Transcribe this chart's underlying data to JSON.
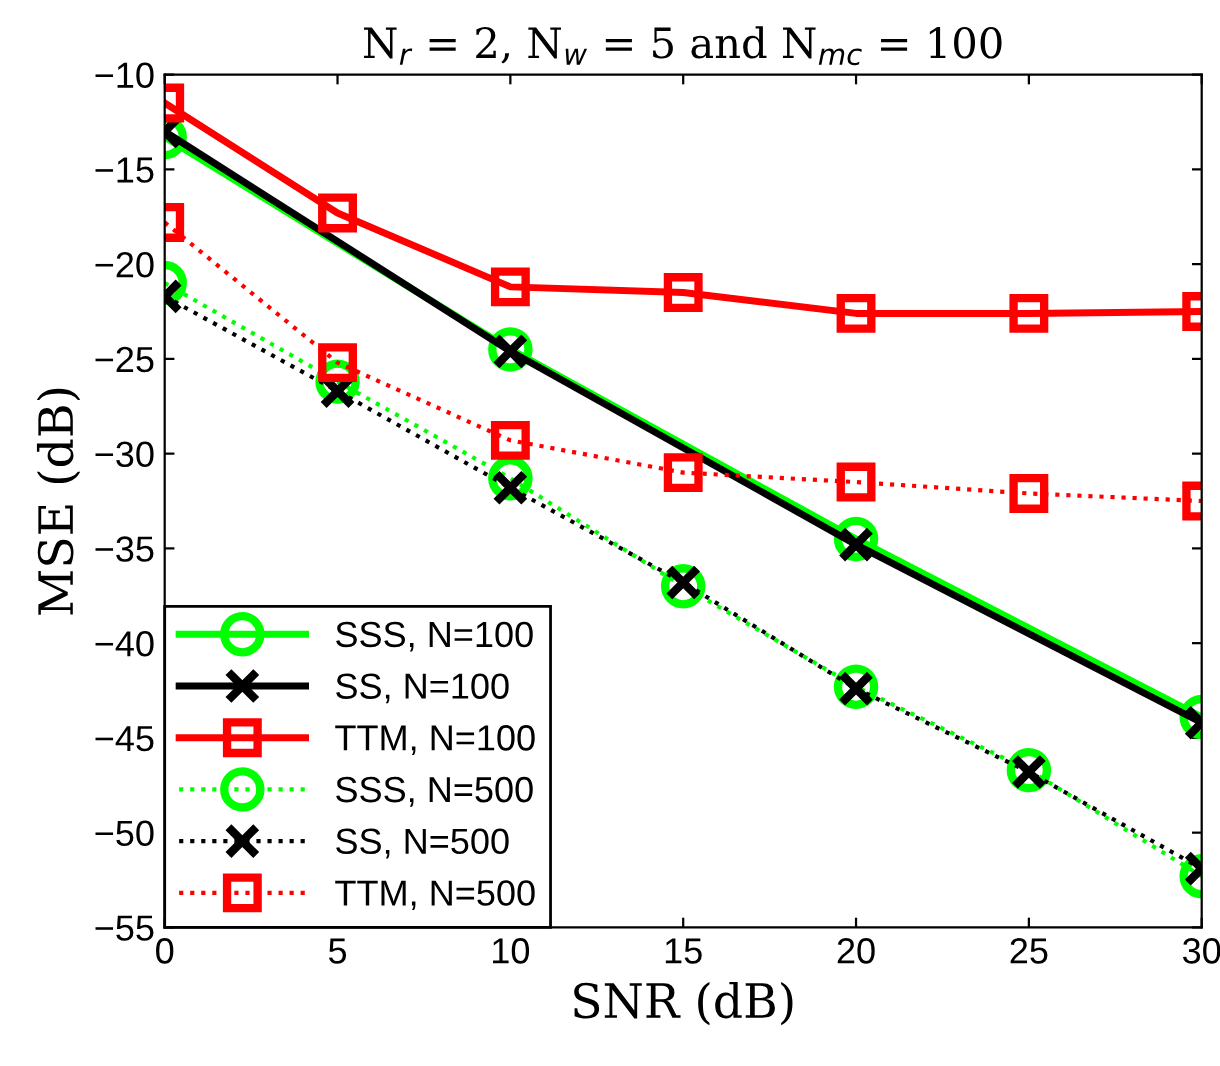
{
  "chart_data": {
    "type": "line",
    "title": "N$_{r}$ = 2, N$_{w}$ = 5 and N$_{mc}$ = 100",
    "xlabel": "SNR (dB)",
    "ylabel": "MSE (dB)",
    "x": [
      0,
      5,
      10,
      15,
      20,
      25,
      30
    ],
    "series": [
      {
        "name": "SSS, N=100",
        "color": "#00ff00",
        "marker": "circle",
        "line_style": "solid",
        "x": [
          0,
          10,
          20,
          30
        ],
        "values": [
          -13.3,
          -24.5,
          -34.5,
          -43.9
        ]
      },
      {
        "name": "SS, N=100",
        "color": "#000000",
        "marker": "cross",
        "line_style": "solid",
        "x": [
          0,
          10,
          20,
          30
        ],
        "values": [
          -13,
          -24.6,
          -34.8,
          -44.2
        ]
      },
      {
        "name": "TTM, N=100",
        "color": "#ff0000",
        "marker": "square",
        "line_style": "solid",
        "values": [
          -11.5,
          -17.3,
          -21.2,
          -21.5,
          -22.6,
          -22.6,
          -22.5
        ]
      },
      {
        "name": "SSS, N=500",
        "color": "#00ff00",
        "marker": "circle",
        "line_style": "dotted",
        "values": [
          -21,
          -26.2,
          -31.3,
          -37,
          -42.3,
          -46.7,
          -52.3
        ]
      },
      {
        "name": "SS, N=500",
        "color": "#000000",
        "marker": "cross",
        "line_style": "dotted",
        "values": [
          -21.7,
          -26.7,
          -31.8,
          -36.8,
          -42.4,
          -46.8,
          -51.9
        ]
      },
      {
        "name": "TTM, N=500",
        "color": "#ff0000",
        "marker": "square",
        "line_style": "dotted",
        "values": [
          -17.8,
          -25.2,
          -29.3,
          -31,
          -31.5,
          -32.1,
          -32.5
        ]
      }
    ],
    "xlim": [
      0,
      30
    ],
    "xticks": [
      0,
      5,
      10,
      15,
      20,
      25,
      30
    ],
    "ylim": [
      -55,
      -10
    ],
    "yticks": [
      {
        "value": -55,
        "label": "−55"
      },
      {
        "value": -50,
        "label": "−50"
      },
      {
        "value": -45,
        "label": "−45"
      },
      {
        "value": -40,
        "label": "−40"
      },
      {
        "value": -35,
        "label": "−35"
      },
      {
        "value": -30,
        "label": "−30"
      },
      {
        "value": -25,
        "label": "−25"
      },
      {
        "value": -20,
        "label": "−20"
      },
      {
        "value": -15,
        "label": "−15"
      },
      {
        "value": -10,
        "label": "−10"
      }
    ],
    "grid": false,
    "legend": "bottom left"
  }
}
